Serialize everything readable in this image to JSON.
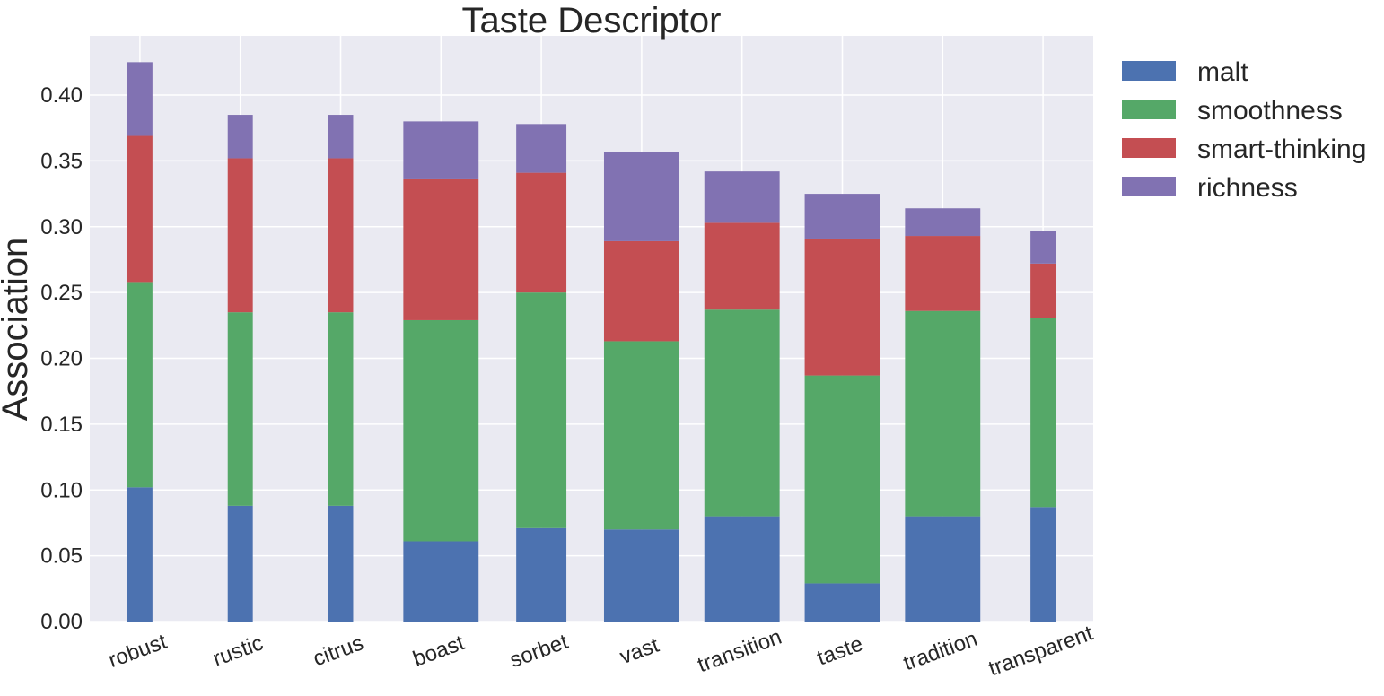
{
  "chart_data": {
    "type": "bar",
    "stacked": true,
    "title": "Taste Descriptor",
    "xlabel": "",
    "ylabel": "Association",
    "ylim": [
      0,
      0.445
    ],
    "yticks": [
      "0.00",
      "0.05",
      "0.10",
      "0.15",
      "0.20",
      "0.25",
      "0.30",
      "0.35",
      "0.40"
    ],
    "grid": true,
    "legend_position": "outside-top-right",
    "categories": [
      "robust",
      "rustic",
      "citrus",
      "boast",
      "sorbet",
      "vast",
      "transition",
      "taste",
      "tradition",
      "transparent"
    ],
    "bar_widths": [
      0.25,
      0.25,
      0.25,
      0.75,
      0.5,
      0.75,
      0.75,
      0.75,
      0.75,
      0.25
    ],
    "series": [
      {
        "name": "malt",
        "color": "#4c72b0",
        "values": [
          0.102,
          0.088,
          0.088,
          0.061,
          0.071,
          0.07,
          0.08,
          0.029,
          0.08,
          0.087
        ]
      },
      {
        "name": "smoothness",
        "color": "#55a868",
        "values": [
          0.156,
          0.147,
          0.147,
          0.168,
          0.179,
          0.143,
          0.157,
          0.158,
          0.156,
          0.144
        ]
      },
      {
        "name": "smart-thinking",
        "color": "#c44e52",
        "values": [
          0.111,
          0.117,
          0.117,
          0.107,
          0.091,
          0.076,
          0.066,
          0.104,
          0.057,
          0.041
        ]
      },
      {
        "name": "richness",
        "color": "#8172b2",
        "values": [
          0.056,
          0.033,
          0.033,
          0.044,
          0.037,
          0.068,
          0.039,
          0.034,
          0.021,
          0.025
        ]
      }
    ]
  }
}
